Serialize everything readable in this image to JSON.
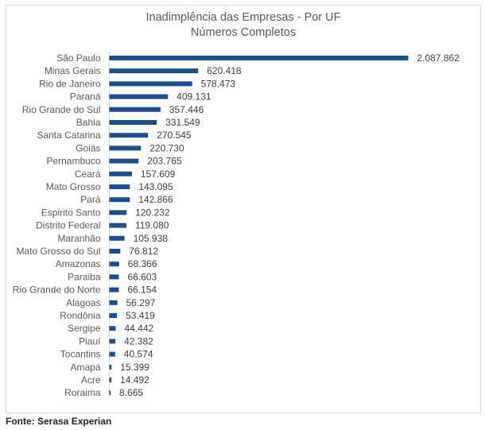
{
  "chart_data": {
    "type": "bar",
    "orientation": "horizontal",
    "title": "Inadimplência das Empresas - Por UF",
    "subtitle": "Números Completos",
    "categories": [
      "São Paulo",
      "Minas Gerais",
      "Rio de Janeiro",
      "Paraná",
      "Rio Grande do Sul",
      "Bahia",
      "Santa Catarina",
      "Goiás",
      "Pernambuco",
      "Ceará",
      "Mato Grosso",
      "Pará",
      "Espirito Santo",
      "Distrito Federal",
      "Maranhão",
      "Mato Grosso do Sul",
      "Amazonas",
      "Paraiba",
      "Rio Grande do Norte",
      "Alagoas",
      "Rondônia",
      "Sergipe",
      "Piauí",
      "Tocantins",
      "Amapá",
      "Acre",
      "Roraima"
    ],
    "values": [
      2087862,
      620418,
      578473,
      409131,
      357446,
      331549,
      270545,
      220730,
      203765,
      157609,
      143095,
      142866,
      120232,
      119080,
      105938,
      76812,
      68366,
      66603,
      66154,
      56297,
      53419,
      44442,
      42382,
      40574,
      15399,
      14492,
      8665
    ],
    "value_labels": [
      "2.087.862",
      "620.418",
      "578.473",
      "409.131",
      "357.446",
      "331.549",
      "270.545",
      "220.730",
      "203.765",
      "157.609",
      "143.095",
      "142.866",
      "120.232",
      "119.080",
      "105.938",
      "76.812",
      "68.366",
      "66.603",
      "66.154",
      "56.297",
      "53.419",
      "44.442",
      "42.382",
      "40.574",
      "15.399",
      "14.492",
      "8.665"
    ],
    "bar_color": "#1f4e8c",
    "grid": false,
    "legend": "none"
  },
  "footer": {
    "source": "Fonte: Serasa Experian"
  }
}
